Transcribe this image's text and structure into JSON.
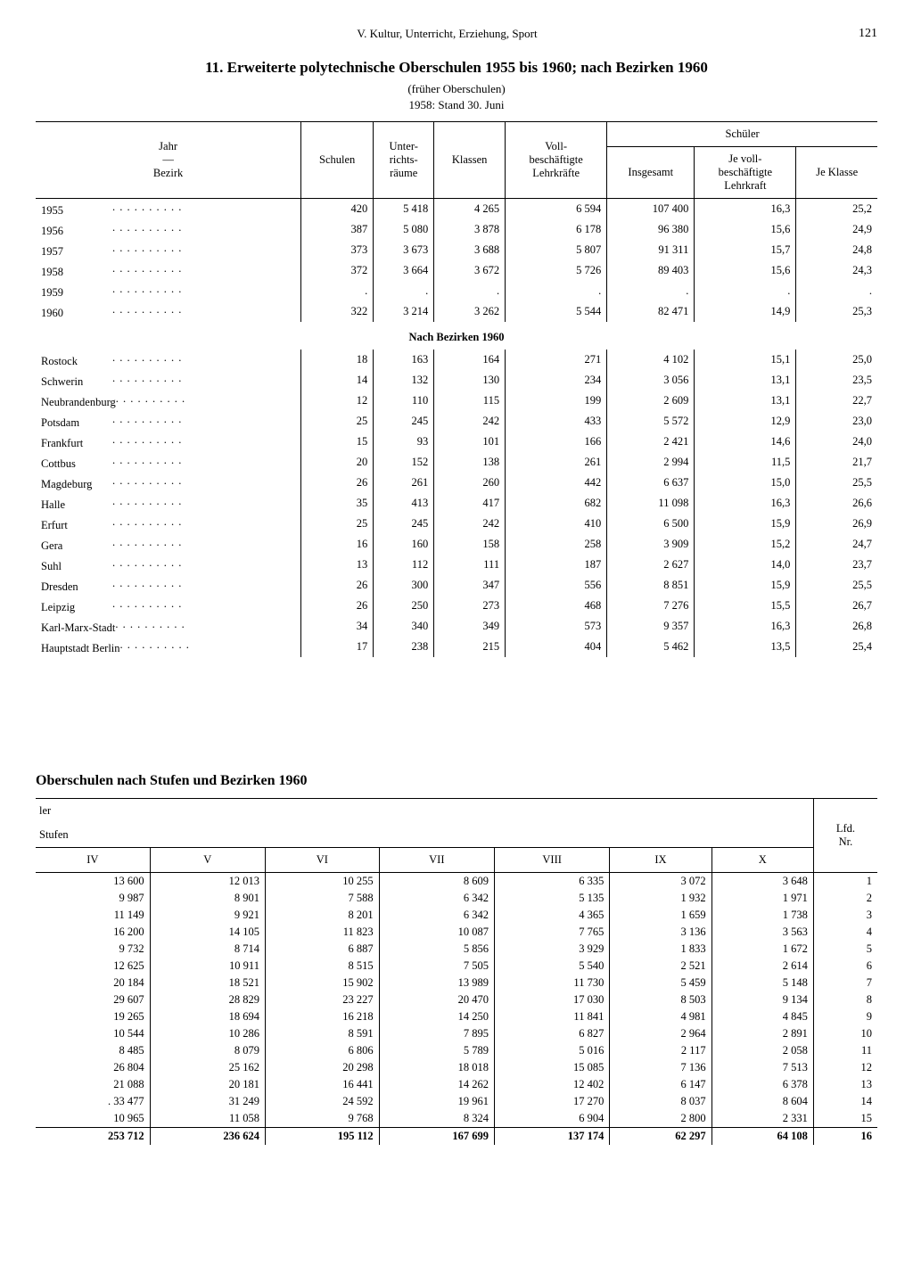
{
  "header": {
    "section": "V. Kultur, Unterricht, Erziehung, Sport",
    "page": "121"
  },
  "table1": {
    "title": "11. Erweiterte polytechnische Oberschulen 1955 bis 1960; nach Bezirken 1960",
    "subtitle1": "(früher Oberschulen)",
    "subtitle2": "1958: Stand 30. Juni",
    "head": {
      "c1a": "Jahr",
      "c1b": "—",
      "c1c": "Bezirk",
      "c2": "Schulen",
      "c3a": "Unter-",
      "c3b": "richts-",
      "c3c": "räume",
      "c4": "Klassen",
      "c5a": "Voll-",
      "c5b": "beschäftigte",
      "c5c": "Lehrkräfte",
      "grp": "Schüler",
      "c6": "Insgesamt",
      "c7a": "Je voll-",
      "c7b": "beschäftigte",
      "c7c": "Lehrkraft",
      "c8": "Je Klasse"
    },
    "years": [
      {
        "label": "1955",
        "schulen": "420",
        "raeume": "5 418",
        "klassen": "4 265",
        "lehr": "6 594",
        "ins": "107 400",
        "jeL": "16,3",
        "jeK": "25,2"
      },
      {
        "label": "1956",
        "schulen": "387",
        "raeume": "5 080",
        "klassen": "3 878",
        "lehr": "6 178",
        "ins": "96 380",
        "jeL": "15,6",
        "jeK": "24,9"
      },
      {
        "label": "1957",
        "schulen": "373",
        "raeume": "3 673",
        "klassen": "3 688",
        "lehr": "5 807",
        "ins": "91 311",
        "jeL": "15,7",
        "jeK": "24,8"
      },
      {
        "label": "1958",
        "schulen": "372",
        "raeume": "3 664",
        "klassen": "3 672",
        "lehr": "5 726",
        "ins": "89 403",
        "jeL": "15,6",
        "jeK": "24,3"
      },
      {
        "label": "1959",
        "schulen": ".",
        "raeume": ".",
        "klassen": ".",
        "lehr": ".",
        "ins": ".",
        "jeL": ".",
        "jeK": "."
      },
      {
        "label": "1960",
        "schulen": "322",
        "raeume": "3 214",
        "klassen": "3 262",
        "lehr": "5 544",
        "ins": "82 471",
        "jeL": "14,9",
        "jeK": "25,3"
      }
    ],
    "subhead": "Nach Bezirken 1960",
    "bezirke": [
      {
        "label": "Rostock",
        "schulen": "18",
        "raeume": "163",
        "klassen": "164",
        "lehr": "271",
        "ins": "4 102",
        "jeL": "15,1",
        "jeK": "25,0"
      },
      {
        "label": "Schwerin",
        "schulen": "14",
        "raeume": "132",
        "klassen": "130",
        "lehr": "234",
        "ins": "3 056",
        "jeL": "13,1",
        "jeK": "23,5"
      },
      {
        "label": "Neubrandenburg",
        "schulen": "12",
        "raeume": "110",
        "klassen": "115",
        "lehr": "199",
        "ins": "2 609",
        "jeL": "13,1",
        "jeK": "22,7"
      },
      {
        "label": "Potsdam",
        "schulen": "25",
        "raeume": "245",
        "klassen": "242",
        "lehr": "433",
        "ins": "5 572",
        "jeL": "12,9",
        "jeK": "23,0"
      },
      {
        "label": "Frankfurt",
        "schulen": "15",
        "raeume": "93",
        "klassen": "101",
        "lehr": "166",
        "ins": "2 421",
        "jeL": "14,6",
        "jeK": "24,0"
      },
      {
        "label": "Cottbus",
        "schulen": "20",
        "raeume": "152",
        "klassen": "138",
        "lehr": "261",
        "ins": "2 994",
        "jeL": "11,5",
        "jeK": "21,7"
      },
      {
        "label": "Magdeburg",
        "schulen": "26",
        "raeume": "261",
        "klassen": "260",
        "lehr": "442",
        "ins": "6 637",
        "jeL": "15,0",
        "jeK": "25,5"
      },
      {
        "label": "Halle",
        "schulen": "35",
        "raeume": "413",
        "klassen": "417",
        "lehr": "682",
        "ins": "11 098",
        "jeL": "16,3",
        "jeK": "26,6"
      },
      {
        "label": "Erfurt",
        "schulen": "25",
        "raeume": "245",
        "klassen": "242",
        "lehr": "410",
        "ins": "6 500",
        "jeL": "15,9",
        "jeK": "26,9"
      },
      {
        "label": "Gera",
        "schulen": "16",
        "raeume": "160",
        "klassen": "158",
        "lehr": "258",
        "ins": "3 909",
        "jeL": "15,2",
        "jeK": "24,7"
      },
      {
        "label": "Suhl",
        "schulen": "13",
        "raeume": "112",
        "klassen": "111",
        "lehr": "187",
        "ins": "2 627",
        "jeL": "14,0",
        "jeK": "23,7"
      },
      {
        "label": "Dresden",
        "schulen": "26",
        "raeume": "300",
        "klassen": "347",
        "lehr": "556",
        "ins": "8 851",
        "jeL": "15,9",
        "jeK": "25,5"
      },
      {
        "label": "Leipzig",
        "schulen": "26",
        "raeume": "250",
        "klassen": "273",
        "lehr": "468",
        "ins": "7 276",
        "jeL": "15,5",
        "jeK": "26,7"
      },
      {
        "label": "Karl-Marx-Stadt",
        "schulen": "34",
        "raeume": "340",
        "klassen": "349",
        "lehr": "573",
        "ins": "9 357",
        "jeL": "16,3",
        "jeK": "26,8"
      },
      {
        "label": "Hauptstadt Berlin",
        "schulen": "17",
        "raeume": "238",
        "klassen": "215",
        "lehr": "404",
        "ins": "5 462",
        "jeL": "13,5",
        "jeK": "25,4"
      }
    ]
  },
  "table2": {
    "title": "Oberschulen nach Stufen und Bezirken 1960",
    "head": {
      "ler": "ler",
      "stufen": "Stufen",
      "c1": "IV",
      "c2": "V",
      "c3": "VI",
      "c4": "VII",
      "c5": "VIII",
      "c6": "IX",
      "c7": "X",
      "nr_a": "Lfd.",
      "nr_b": "Nr."
    },
    "rows": [
      {
        "iv": "13 600",
        "v": "12 013",
        "vi": "10 255",
        "vii": "8 609",
        "viii": "6 335",
        "ix": "3 072",
        "x": "3 648",
        "nr": "1"
      },
      {
        "iv": "9 987",
        "v": "8 901",
        "vi": "7 588",
        "vii": "6 342",
        "viii": "5 135",
        "ix": "1 932",
        "x": "1 971",
        "nr": "2"
      },
      {
        "iv": "11 149",
        "v": "9 921",
        "vi": "8 201",
        "vii": "6 342",
        "viii": "4 365",
        "ix": "1 659",
        "x": "1 738",
        "nr": "3"
      },
      {
        "iv": "16 200",
        "v": "14 105",
        "vi": "11 823",
        "vii": "10 087",
        "viii": "7 765",
        "ix": "3 136",
        "x": "3 563",
        "nr": "4"
      },
      {
        "iv": "9 732",
        "v": "8 714",
        "vi": "6 887",
        "vii": "5 856",
        "viii": "3 929",
        "ix": "1 833",
        "x": "1 672",
        "nr": "5"
      },
      {
        "iv": "12 625",
        "v": "10 911",
        "vi": "8 515",
        "vii": "7 505",
        "viii": "5 540",
        "ix": "2 521",
        "x": "2 614",
        "nr": "6"
      },
      {
        "iv": "20 184",
        "v": "18 521",
        "vi": "15 902",
        "vii": "13 989",
        "viii": "11 730",
        "ix": "5 459",
        "x": "5 148",
        "nr": "7"
      },
      {
        "iv": "29 607",
        "v": "28 829",
        "vi": "23 227",
        "vii": "20 470",
        "viii": "17 030",
        "ix": "8 503",
        "x": "9 134",
        "nr": "8"
      },
      {
        "iv": "19 265",
        "v": "18 694",
        "vi": "16 218",
        "vii": "14 250",
        "viii": "11 841",
        "ix": "4 981",
        "x": "4 845",
        "nr": "9"
      },
      {
        "iv": "10 544",
        "v": "10 286",
        "vi": "8 591",
        "vii": "7 895",
        "viii": "6 827",
        "ix": "2 964",
        "x": "2 891",
        "nr": "10"
      },
      {
        "iv": "8 485",
        "v": "8 079",
        "vi": "6 806",
        "vii": "5 789",
        "viii": "5 016",
        "ix": "2 117",
        "x": "2 058",
        "nr": "11"
      },
      {
        "iv": "26 804",
        "v": "25 162",
        "vi": "20 298",
        "vii": "18 018",
        "viii": "15 085",
        "ix": "7 136",
        "x": "7 513",
        "nr": "12"
      },
      {
        "iv": "21 088",
        "v": "20 181",
        "vi": "16 441",
        "vii": "14 262",
        "viii": "12 402",
        "ix": "6 147",
        "x": "6 378",
        "nr": "13"
      },
      {
        "iv": ". 33 477",
        "v": "31 249",
        "vi": "24 592",
        "vii": "19 961",
        "viii": "17 270",
        "ix": "8 037",
        "x": "8 604",
        "nr": "14"
      },
      {
        "iv": "10 965",
        "v": "11 058",
        "vi": "9 768",
        "vii": "8 324",
        "viii": "6 904",
        "ix": "2 800",
        "x": "2 331",
        "nr": "15"
      }
    ],
    "total": {
      "iv": "253 712",
      "v": "236 624",
      "vi": "195 112",
      "vii": "167 699",
      "viii": "137 174",
      "ix": "62 297",
      "x": "64 108",
      "nr": "16"
    }
  }
}
